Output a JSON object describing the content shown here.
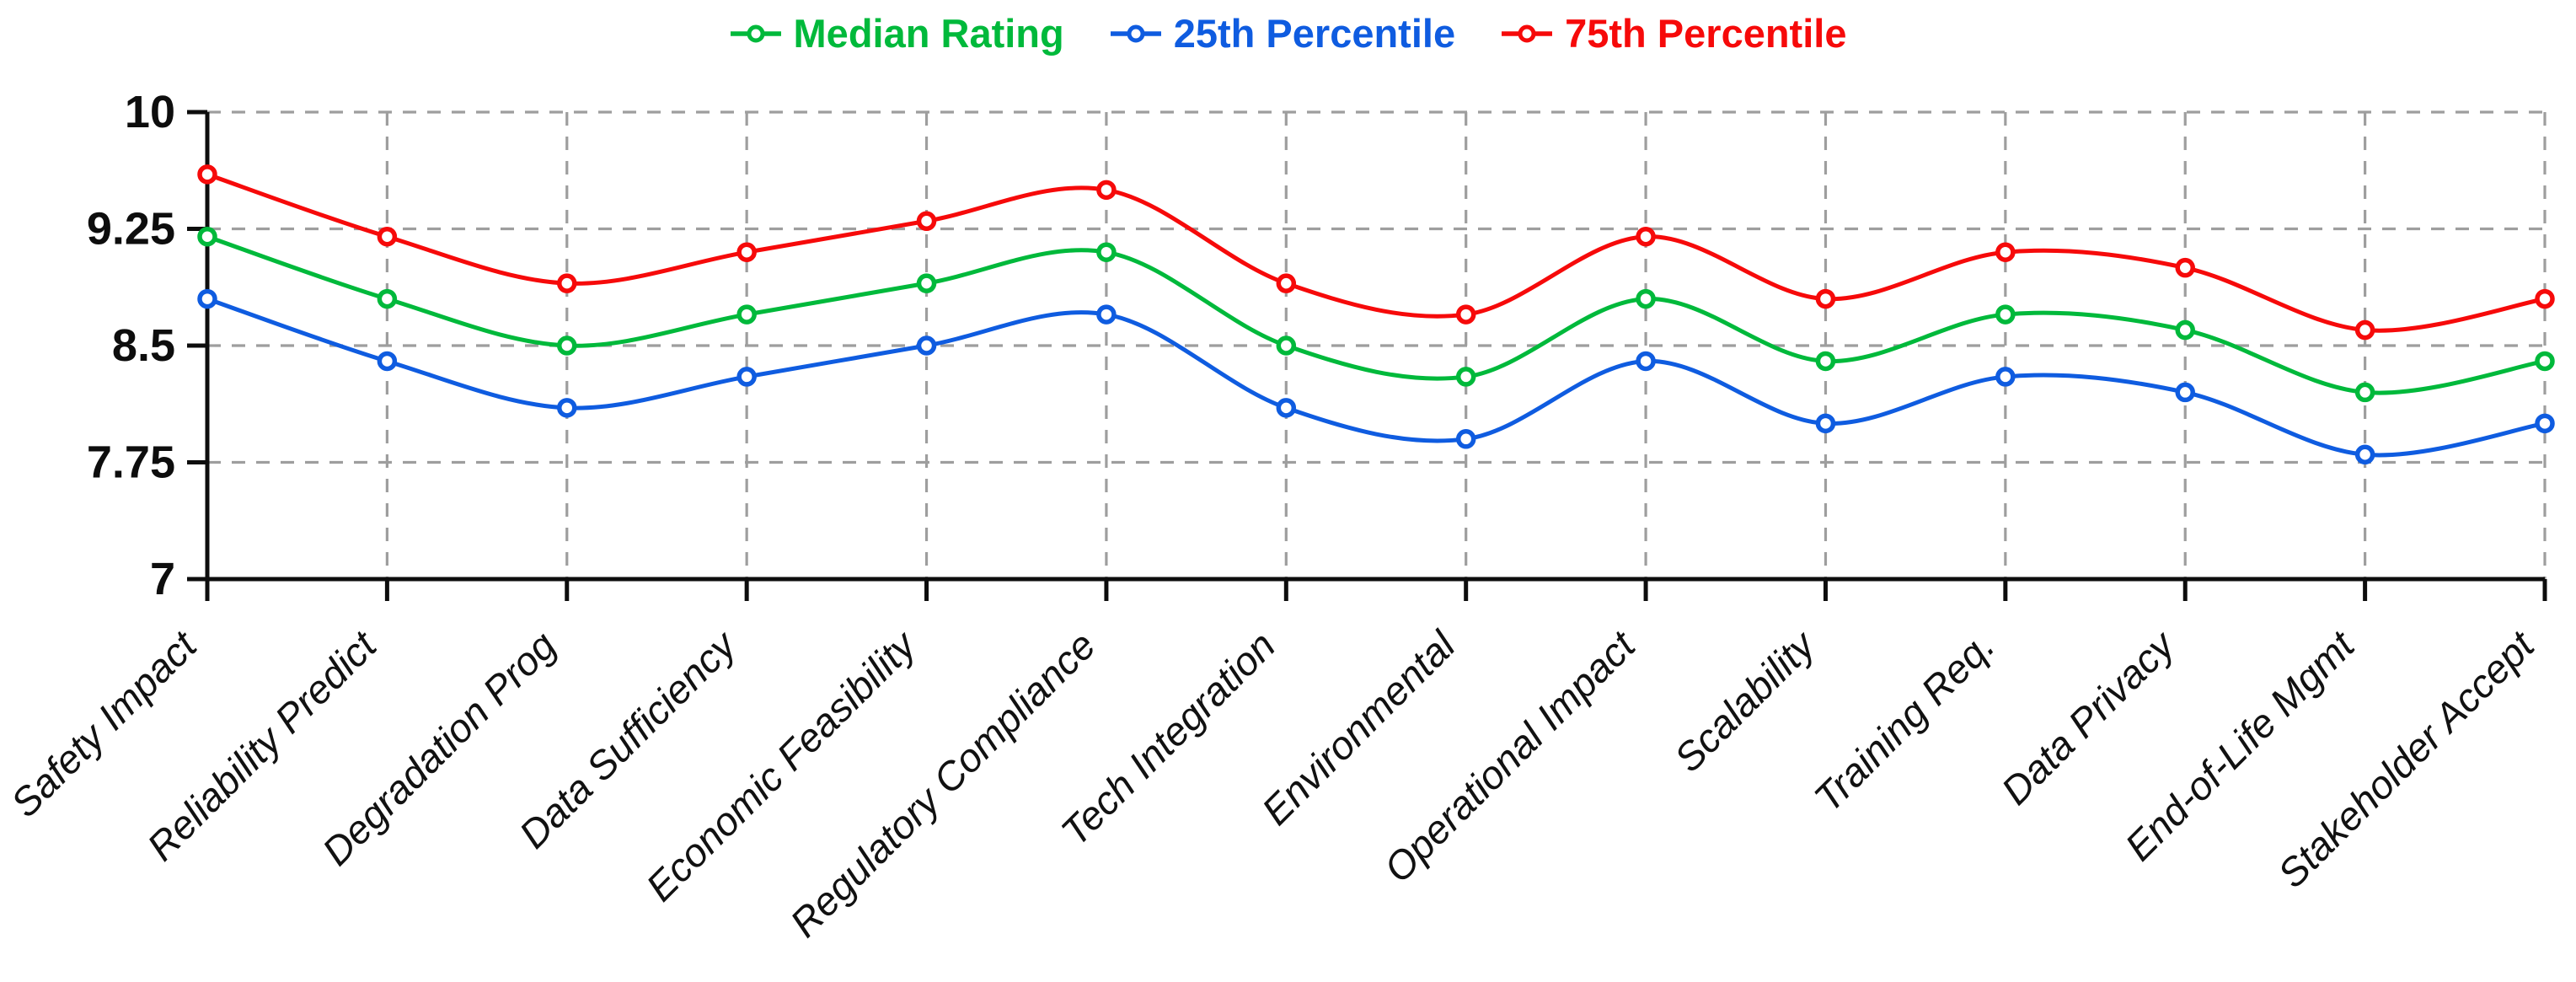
{
  "chart_data": {
    "type": "line",
    "title": "",
    "xlabel": "",
    "ylabel": "",
    "categories": [
      "Safety Impact",
      "Reliability Predict",
      "Degradation Prog",
      "Data Sufficiency",
      "Economic Feasibility",
      "Regulatory Compliance",
      "Tech Integration",
      "Environmental",
      "Operational Impact",
      "Scalability",
      "Training Req.",
      "Data Privacy",
      "End-of-Life Mgmt",
      "Stakeholder Accept"
    ],
    "series": [
      {
        "name": "Median Rating",
        "color": "#00b93b",
        "values": [
          9.2,
          8.8,
          8.5,
          8.7,
          8.9,
          9.1,
          8.5,
          8.3,
          8.8,
          8.4,
          8.7,
          8.6,
          8.2,
          8.4
        ]
      },
      {
        "name": "25th Percentile",
        "color": "#0f5ce0",
        "values": [
          8.8,
          8.4,
          8.1,
          8.3,
          8.5,
          8.7,
          8.1,
          7.9,
          8.4,
          8.0,
          8.3,
          8.2,
          7.8,
          8.0
        ]
      },
      {
        "name": "75th Percentile",
        "color": "#f60a0a",
        "values": [
          9.6,
          9.2,
          8.9,
          9.1,
          9.3,
          9.5,
          8.9,
          8.7,
          9.2,
          8.8,
          9.1,
          9.0,
          8.6,
          8.8
        ]
      }
    ],
    "ylim": [
      7,
      10
    ],
    "yticks": [
      7,
      7.75,
      8.5,
      9.25,
      10
    ],
    "ytick_labels": [
      "7",
      "7.75",
      "8.5",
      "9.25",
      "10"
    ],
    "grid": true,
    "grid_style": "dashed",
    "legend_position": "top",
    "marker": "open-circle",
    "axis_color": "#0d0d0d",
    "grid_color": "#9e9e9e",
    "background": "#ffffff"
  }
}
